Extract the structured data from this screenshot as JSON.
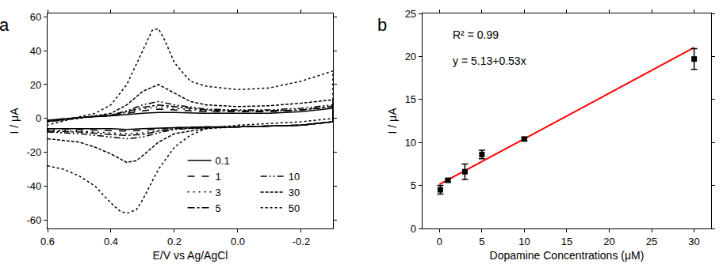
{
  "chart_data": [
    {
      "type": "line",
      "x_label": "E/V vs Ag/AgCl",
      "y_label": "I / μA",
      "annotations": [
        {
          "text": "a"
        }
      ],
      "xlim": [
        0.6,
        -0.3
      ],
      "xticks": [
        0.6,
        0.4,
        0.2,
        {
          "value": 0,
          "label": "0.0"
        },
        -0.2
      ],
      "ylim": [
        -65,
        62
      ],
      "yticks": [
        -60,
        -40,
        -20,
        0,
        20,
        40,
        60
      ],
      "grid": false,
      "legend": "lower right",
      "series": [
        {
          "name": "0.1",
          "color": "#000000",
          "line_style": "solid",
          "x": [
            0.6,
            0.5,
            0.4,
            0.35,
            0.3,
            0.2,
            0.1,
            0.0,
            -0.1,
            -0.2,
            -0.3,
            -0.3,
            -0.2,
            -0.1,
            0.0,
            0.1,
            0.2,
            0.25,
            0.3,
            0.4,
            0.5,
            0.6
          ],
          "values": [
            -6,
            -6,
            -6,
            -6.5,
            -6,
            -5.5,
            -5,
            -5,
            -4.5,
            -4,
            -2,
            6,
            4,
            3,
            3,
            3,
            3.5,
            3.5,
            3,
            1.5,
            0.5,
            -1
          ]
        },
        {
          "name": "1",
          "color": "#000000",
          "line_style": "dashed",
          "x": [
            0.6,
            0.5,
            0.4,
            0.35,
            0.3,
            0.25,
            0.2,
            0.1,
            0.0,
            -0.1,
            -0.2,
            -0.3,
            -0.3,
            -0.2,
            -0.1,
            0.0,
            0.1,
            0.2,
            0.25,
            0.3,
            0.35,
            0.4,
            0.5,
            0.6
          ],
          "values": [
            -6,
            -6.5,
            -7,
            -7.5,
            -7,
            -6,
            -5.5,
            -5,
            -5,
            -4.5,
            -4,
            -2,
            7,
            5,
            4,
            4,
            4,
            5,
            5.5,
            4.5,
            3,
            1.5,
            0.5,
            -1
          ]
        },
        {
          "name": "3",
          "color": "#000000",
          "line_style": "sparse_dotted",
          "x": [
            0.6,
            0.5,
            0.4,
            0.35,
            0.3,
            0.25,
            0.2,
            0.1,
            0.0,
            -0.1,
            -0.2,
            -0.3,
            -0.3,
            -0.2,
            -0.1,
            0.0,
            0.1,
            0.2,
            0.25,
            0.3,
            0.35,
            0.4,
            0.5,
            0.6
          ],
          "values": [
            -7,
            -7.5,
            -8.5,
            -9,
            -8.5,
            -7,
            -6,
            -5.5,
            -5,
            -4.5,
            -4,
            -2,
            7,
            5,
            4.5,
            4.5,
            4.5,
            6,
            7,
            5.5,
            3.5,
            2,
            0.5,
            -1.5
          ]
        },
        {
          "name": "5",
          "color": "#000000",
          "line_style": "dashdot",
          "x": [
            0.6,
            0.5,
            0.4,
            0.35,
            0.3,
            0.25,
            0.2,
            0.1,
            0.0,
            -0.1,
            -0.2,
            -0.3,
            -0.3,
            -0.2,
            -0.1,
            0.0,
            0.1,
            0.2,
            0.25,
            0.3,
            0.35,
            0.4,
            0.5,
            0.6
          ],
          "values": [
            -7.5,
            -8,
            -9.5,
            -10,
            -9.5,
            -7.5,
            -6,
            -5.5,
            -5,
            -4.5,
            -4,
            -2,
            7,
            5,
            4.5,
            4.5,
            5,
            7,
            8,
            6.5,
            4,
            2,
            0.5,
            -1.5
          ]
        },
        {
          "name": "10",
          "color": "#000000",
          "line_style": "dashdotdot",
          "x": [
            0.6,
            0.5,
            0.4,
            0.35,
            0.3,
            0.25,
            0.2,
            0.1,
            0.0,
            -0.1,
            -0.2,
            -0.3,
            -0.3,
            -0.2,
            -0.1,
            0.0,
            0.1,
            0.2,
            0.25,
            0.3,
            0.35,
            0.4,
            0.5,
            0.6
          ],
          "values": [
            -8,
            -9,
            -11,
            -12,
            -11,
            -8.5,
            -6.5,
            -5.5,
            -5,
            -4.5,
            -4,
            -2,
            8,
            6,
            5,
            5,
            5.5,
            8,
            10,
            8,
            4.5,
            2,
            0.5,
            -2
          ]
        },
        {
          "name": "30",
          "color": "#000000",
          "line_style": "shortdash",
          "x": [
            0.6,
            0.5,
            0.45,
            0.4,
            0.35,
            0.32,
            0.3,
            0.25,
            0.2,
            0.1,
            0.0,
            -0.1,
            -0.2,
            -0.3,
            -0.3,
            -0.2,
            -0.1,
            0.0,
            0.1,
            0.15,
            0.2,
            0.25,
            0.3,
            0.35,
            0.4,
            0.5,
            0.6
          ],
          "values": [
            -12,
            -14,
            -17,
            -21,
            -26,
            -25,
            -22,
            -14,
            -9,
            -6,
            -5,
            -4.5,
            -4,
            -2,
            11,
            9,
            7.5,
            7,
            8,
            10,
            15,
            20,
            16,
            8,
            3,
            0,
            -2
          ]
        },
        {
          "name": "50",
          "color": "#000000",
          "line_style": "dotted",
          "x": [
            0.6,
            0.55,
            0.5,
            0.45,
            0.4,
            0.37,
            0.35,
            0.32,
            0.3,
            0.25,
            0.2,
            0.15,
            0.1,
            0.0,
            -0.1,
            -0.2,
            -0.3,
            -0.3,
            -0.2,
            -0.1,
            0.0,
            0.1,
            0.15,
            0.2,
            0.23,
            0.25,
            0.27,
            0.3,
            0.35,
            0.4,
            0.45,
            0.5,
            0.6
          ],
          "values": [
            -28,
            -30,
            -34,
            -40,
            -50,
            -55,
            -56,
            -54,
            -48,
            -30,
            -17,
            -10,
            -6,
            -4,
            -3,
            -2,
            0,
            28,
            22,
            18,
            17,
            19,
            22,
            33,
            46,
            53,
            52,
            40,
            20,
            8,
            3,
            1,
            -4
          ]
        }
      ]
    },
    {
      "type": "scatter",
      "x_label": "Dopamine Concentrations (μM)",
      "y_label": "I / μA",
      "annotations": [
        {
          "text": "b"
        },
        {
          "text": "R² = 0.99"
        },
        {
          "text": "y = 5.13+0.53x"
        }
      ],
      "xlim": [
        -2,
        32
      ],
      "xticks": [
        0,
        5,
        10,
        15,
        20,
        25,
        30
      ],
      "ylim": [
        0,
        25
      ],
      "yticks": [
        0,
        5,
        10,
        15,
        20,
        25
      ],
      "grid": false,
      "series": [
        {
          "type": "scatter",
          "marker": "square",
          "color": "#000000",
          "x": [
            0.1,
            1,
            3,
            5,
            10,
            30
          ],
          "values": [
            4.5,
            5.6,
            6.6,
            8.6,
            10.4,
            19.7
          ],
          "errors": [
            0.5,
            0.2,
            0.9,
            0.5,
            0.2,
            1.2
          ]
        },
        {
          "type": "line",
          "color": "#ff0000",
          "line_style": "solid",
          "x": [
            0,
            30
          ],
          "values": [
            5.13,
            21.03
          ]
        }
      ]
    }
  ]
}
